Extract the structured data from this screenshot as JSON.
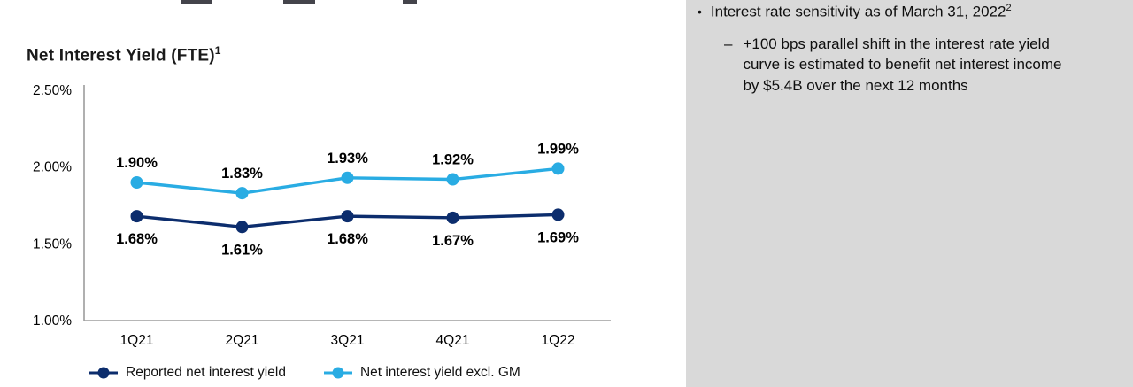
{
  "slide": {
    "title": "Net Interest Yield (FTE)",
    "title_superscript": "1"
  },
  "chart_data": {
    "type": "line",
    "title": "Net Interest Yield (FTE)¹",
    "categories": [
      "1Q21",
      "2Q21",
      "3Q21",
      "4Q21",
      "1Q22"
    ],
    "series": [
      {
        "name": "Reported net interest yield",
        "values": [
          1.68,
          1.61,
          1.68,
          1.67,
          1.69
        ],
        "labels": [
          "1.68%",
          "1.61%",
          "1.68%",
          "1.67%",
          "1.69%"
        ],
        "color": "#0c2d6d",
        "label_position": "below"
      },
      {
        "name": "Net interest yield excl. GM",
        "values": [
          1.9,
          1.83,
          1.93,
          1.92,
          1.99
        ],
        "labels": [
          "1.90%",
          "1.83%",
          "1.93%",
          "1.92%",
          "1.99%"
        ],
        "color": "#29ace3",
        "label_position": "above"
      }
    ],
    "ylim": [
      1.0,
      2.5
    ],
    "yticks": [
      2.5,
      2.0,
      1.5,
      1.0
    ],
    "ytick_labels": [
      "2.50%",
      "2.00%",
      "1.50%",
      "1.00%"
    ],
    "xlabel": "",
    "ylabel": "",
    "grid": false,
    "legend_position": "bottom",
    "axis_color": "#9d9d9d",
    "label_color": "#000000"
  },
  "right_panel": {
    "background": "#d9d9d9",
    "bullet_glyph": "•",
    "bullet": "Interest rate sensitivity as of March 31, 2022",
    "bullet_superscript": "2",
    "sub_bullet_dash": "–",
    "sub_bullet": "+100 bps parallel shift in the interest rate yield curve is estimated to benefit net interest income by $5.4B over the next 12 months"
  }
}
